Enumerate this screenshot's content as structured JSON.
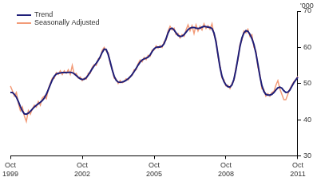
{
  "chart_data": {
    "type": "line",
    "y_label": "'000",
    "categories": [
      "Oct 1999",
      null,
      null,
      null,
      null,
      null,
      null,
      null,
      null,
      null,
      null,
      null,
      null,
      null,
      null,
      null,
      null,
      null,
      null,
      null,
      null,
      null,
      null,
      null,
      null,
      null,
      null,
      null,
      null,
      null,
      null,
      null,
      null,
      null,
      null,
      null,
      "Oct 2002",
      null,
      null,
      null,
      null,
      null,
      null,
      null,
      null,
      null,
      null,
      null,
      null,
      null,
      null,
      null,
      null,
      null,
      null,
      null,
      null,
      null,
      null,
      null,
      null,
      null,
      null,
      null,
      null,
      null,
      null,
      null,
      null,
      null,
      null,
      null,
      "Oct 2005",
      null,
      null,
      null,
      null,
      null,
      null,
      null,
      null,
      null,
      null,
      null,
      null,
      null,
      null,
      null,
      null,
      null,
      null,
      null,
      null,
      null,
      null,
      null,
      null,
      null,
      null,
      null,
      null,
      null,
      null,
      null,
      null,
      null,
      null,
      null,
      "Oct 2008",
      null,
      null,
      null,
      null,
      null,
      null,
      null,
      null,
      null,
      null,
      null,
      null,
      null,
      null,
      null,
      null,
      null,
      null,
      null,
      null,
      null,
      null,
      null,
      null,
      null,
      null,
      null,
      null,
      null,
      null,
      null,
      null,
      null,
      null,
      null,
      "Oct 2011"
    ],
    "series": [
      {
        "name": "Trend",
        "color": "#1f1f78",
        "values": [
          47.5,
          47.5,
          47.0,
          46.2,
          45.0,
          43.6,
          42.4,
          41.6,
          41.5,
          41.8,
          42.3,
          42.9,
          43.5,
          44.0,
          44.4,
          44.8,
          45.3,
          46.0,
          47.0,
          48.3,
          49.7,
          51.0,
          52.0,
          52.6,
          52.8,
          52.9,
          53.0,
          53.0,
          53.0,
          53.1,
          53.1,
          53.0,
          52.7,
          52.2,
          51.7,
          51.3,
          51.1,
          51.2,
          51.6,
          52.3,
          53.2,
          54.1,
          54.9,
          55.6,
          56.4,
          57.4,
          58.6,
          59.5,
          59.4,
          58.0,
          56.0,
          53.8,
          52.0,
          50.9,
          50.4,
          50.3,
          50.4,
          50.6,
          50.9,
          51.3,
          51.8,
          52.5,
          53.3,
          54.2,
          55.1,
          55.9,
          56.5,
          56.8,
          57.0,
          57.3,
          57.9,
          58.8,
          59.6,
          60.0,
          60.1,
          60.1,
          60.3,
          61.0,
          62.4,
          64.0,
          65.1,
          65.3,
          64.8,
          64.0,
          63.3,
          63.0,
          63.1,
          63.5,
          64.2,
          64.9,
          65.3,
          65.5,
          65.5,
          65.3,
          65.2,
          65.3,
          65.6,
          65.8,
          65.7,
          65.6,
          65.5,
          65.2,
          64.0,
          61.5,
          58.0,
          54.5,
          52.0,
          50.5,
          49.6,
          49.1,
          49.0,
          49.6,
          51.2,
          53.8,
          57.0,
          60.2,
          62.6,
          64.0,
          64.6,
          64.4,
          63.6,
          62.4,
          60.8,
          58.4,
          55.3,
          52.0,
          49.4,
          47.8,
          47.0,
          46.8,
          46.8,
          47.0,
          47.5,
          48.2,
          48.8,
          49.0,
          48.7,
          48.0,
          47.5,
          47.6,
          48.2,
          49.2,
          50.2,
          51.0,
          51.7
        ]
      },
      {
        "name": "Seasonally Adjusted",
        "color": "#f29b78",
        "values": [
          49.3,
          48.0,
          46.5,
          47.5,
          44.5,
          42.5,
          43.5,
          41.0,
          39.5,
          42.5,
          41.5,
          43.0,
          44.0,
          43.5,
          45.0,
          44.0,
          46.0,
          46.5,
          45.8,
          48.5,
          50.0,
          51.5,
          51.5,
          53.0,
          52.5,
          53.5,
          52.5,
          53.5,
          52.8,
          53.8,
          52.5,
          55.0,
          52.5,
          52.8,
          51.5,
          51.8,
          50.8,
          51.5,
          51.2,
          52.8,
          52.8,
          54.5,
          55.2,
          55.0,
          56.8,
          57.0,
          59.2,
          60.0,
          59.0,
          58.5,
          55.5,
          54.0,
          51.5,
          51.2,
          50.0,
          50.8,
          50.2,
          50.5,
          51.3,
          51.0,
          52.0,
          52.2,
          53.8,
          53.8,
          55.5,
          56.5,
          56.0,
          57.2,
          56.6,
          57.8,
          57.5,
          59.2,
          59.3,
          60.4,
          59.8,
          60.5,
          60.0,
          61.5,
          62.0,
          64.5,
          65.8,
          64.8,
          65.3,
          63.5,
          63.8,
          62.6,
          63.5,
          63.0,
          64.8,
          66.2,
          64.6,
          66.0,
          63.8,
          66.2,
          64.5,
          65.8,
          64.8,
          66.5,
          65.2,
          66.0,
          65.0,
          66.5,
          63.5,
          62.0,
          57.5,
          55.0,
          51.5,
          51.0,
          49.3,
          49.5,
          48.6,
          50.0,
          50.8,
          54.5,
          56.5,
          60.8,
          62.0,
          64.5,
          64.0,
          65.0,
          63.0,
          63.5,
          60.0,
          59.0,
          54.5,
          52.5,
          48.5,
          48.3,
          46.5,
          47.2,
          46.5,
          47.5,
          47.8,
          49.5,
          50.8,
          48.5,
          47.0,
          45.5,
          45.5,
          47.0,
          48.5,
          49.5,
          50.5,
          51.0,
          52.0
        ]
      }
    ],
    "ylim": [
      30,
      70
    ],
    "yticks": [
      30,
      40,
      50,
      60,
      70
    ],
    "grid": false,
    "legend": "upper left"
  }
}
